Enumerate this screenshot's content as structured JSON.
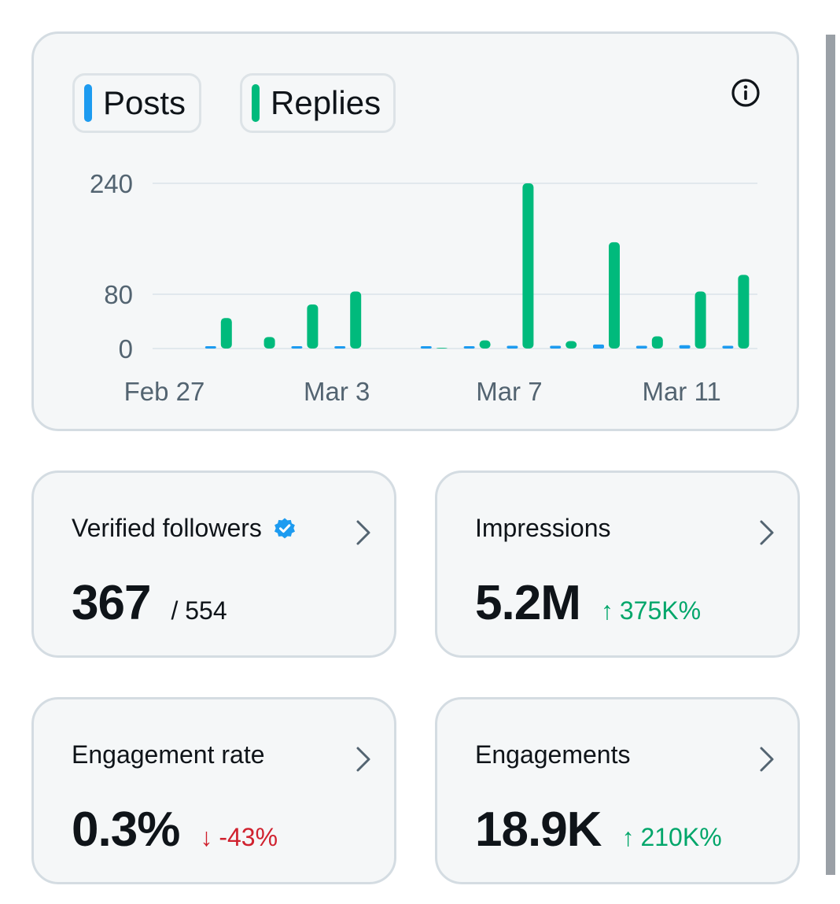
{
  "legend": {
    "posts_label": "Posts",
    "replies_label": "Replies",
    "posts_color": "#1d9bf0",
    "replies_color": "#00ba7c"
  },
  "info_icon": "info-circle-icon",
  "chart_data": {
    "type": "bar",
    "y_ticks": [
      "240",
      "80",
      "0"
    ],
    "x_ticks": [
      "Feb 27",
      "Mar 3",
      "Mar 7",
      "Mar 11"
    ],
    "ylim": [
      0,
      240
    ],
    "grid": true,
    "categories": [
      "Feb 27",
      "Feb 28",
      "Mar 1",
      "Mar 2",
      "Mar 3",
      "Mar 4",
      "Mar 5",
      "Mar 6",
      "Mar 7",
      "Mar 8",
      "Mar 9",
      "Mar 10",
      "Mar 11",
      "Mar 12"
    ],
    "series": [
      {
        "name": "Posts",
        "color": "#1d9bf0",
        "values": [
          0,
          2,
          0,
          1,
          1,
          0,
          1,
          3,
          4,
          4,
          6,
          4,
          5,
          4
        ]
      },
      {
        "name": "Replies",
        "color": "#00ba7c",
        "values": [
          0,
          45,
          17,
          65,
          84,
          0,
          1,
          12,
          240,
          11,
          155,
          18,
          84,
          108
        ]
      }
    ]
  },
  "cards": [
    {
      "title": "Verified followers",
      "value": "367",
      "sub": "/ 554",
      "verified": true
    },
    {
      "title": "Impressions",
      "value": "5.2M",
      "delta": "375K%",
      "direction": "up",
      "arrow": "↑"
    },
    {
      "title": "Engagement rate",
      "value": "0.3%",
      "delta": "-43%",
      "direction": "down",
      "arrow": "↓"
    },
    {
      "title": "Engagements",
      "value": "18.9K",
      "delta": "210K%",
      "direction": "up",
      "arrow": "↑"
    }
  ]
}
